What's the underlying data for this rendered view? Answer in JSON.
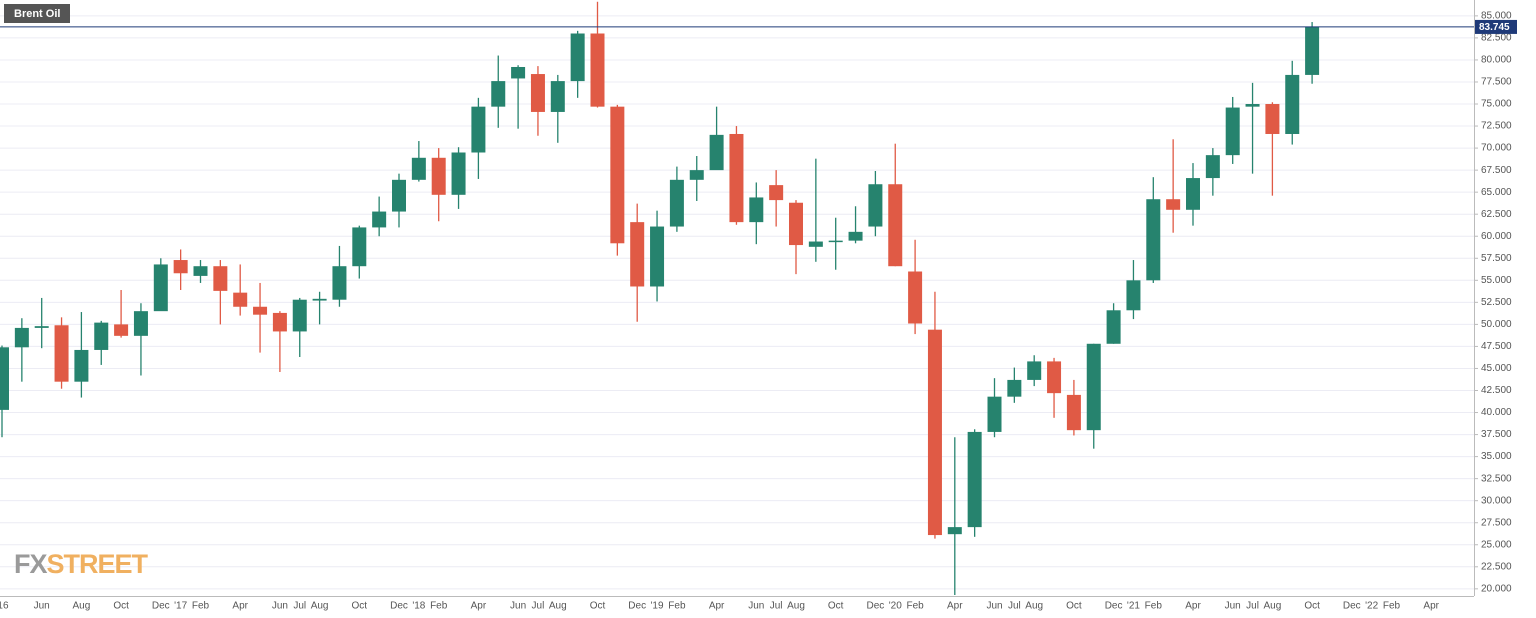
{
  "chart_data": {
    "type": "candlestick",
    "title": "Brent Oil",
    "watermark": {
      "left": "FX",
      "right": "STREET"
    },
    "categories": [
      "'16",
      null,
      "Jun",
      null,
      "Aug",
      null,
      "Oct",
      null,
      "Dec",
      "'17",
      "Feb",
      null,
      "Apr",
      null,
      "Jun",
      "Jul",
      "Aug",
      null,
      "Oct",
      null,
      "Dec",
      "'18",
      "Feb",
      null,
      "Apr",
      null,
      "Jun",
      "Jul",
      "Aug",
      null,
      "Oct",
      null,
      "Dec",
      "'19",
      "Feb",
      null,
      "Apr",
      null,
      "Jun",
      "Jul",
      "Aug",
      null,
      "Oct",
      null,
      "Dec",
      "'20",
      "Feb",
      null,
      "Apr",
      null,
      "Jun",
      "Jul",
      "Aug",
      null,
      "Oct",
      null,
      "Dec",
      "'21",
      "Feb",
      null,
      "Apr",
      null,
      "Jun",
      "Jul",
      "Aug",
      null,
      "Oct",
      null,
      "Dec",
      "'22",
      "Feb",
      null,
      "Apr"
    ],
    "open": [
      40.3,
      47.4,
      49.6,
      49.9,
      43.5,
      47.1,
      50.0,
      48.7,
      51.5,
      57.3,
      55.5,
      56.6,
      53.6,
      52.0,
      51.3,
      49.2,
      52.7,
      52.8,
      56.6,
      61.0,
      62.8,
      66.4,
      68.9,
      64.7,
      69.5,
      74.7,
      77.9,
      78.4,
      74.1,
      77.6,
      83.0,
      74.7,
      61.6,
      54.3,
      61.1,
      66.4,
      67.5,
      71.6,
      61.6,
      65.8,
      63.8,
      58.8,
      59.4,
      59.5,
      61.1,
      65.9,
      56.0,
      49.4,
      26.2,
      27.0,
      37.8,
      41.8,
      43.7,
      45.8,
      42.0,
      38.0,
      47.8,
      51.6,
      55.0,
      64.2,
      63.0,
      66.6,
      69.2,
      74.7,
      75.0,
      71.6,
      78.3,
      null,
      null,
      null,
      null,
      null,
      null
    ],
    "high": [
      47.6,
      50.7,
      53.0,
      50.8,
      51.4,
      50.4,
      53.9,
      52.4,
      57.5,
      58.5,
      57.3,
      57.3,
      56.8,
      54.7,
      51.5,
      53.0,
      53.7,
      58.9,
      61.2,
      64.5,
      67.1,
      70.8,
      70.0,
      70.1,
      75.7,
      80.5,
      79.4,
      79.3,
      78.3,
      83.3,
      86.6,
      74.9,
      63.7,
      62.9,
      67.9,
      69.1,
      74.7,
      72.5,
      66.1,
      67.5,
      64.1,
      68.8,
      62.1,
      63.4,
      67.4,
      70.5,
      59.6,
      53.7,
      37.2,
      38.1,
      43.9,
      45.1,
      46.5,
      46.2,
      43.7,
      47.8,
      52.4,
      57.3,
      66.7,
      71.0,
      68.3,
      70.0,
      75.8,
      77.4,
      75.2,
      79.9,
      84.3,
      null,
      null,
      null,
      null,
      null,
      null
    ],
    "low": [
      37.2,
      43.5,
      47.3,
      42.7,
      41.7,
      45.4,
      48.5,
      44.2,
      51.9,
      53.9,
      54.7,
      50.0,
      51.0,
      46.8,
      44.6,
      46.3,
      50.0,
      52.0,
      55.2,
      60.0,
      61.0,
      66.2,
      61.7,
      63.1,
      66.5,
      72.3,
      72.2,
      71.4,
      70.6,
      75.7,
      74.6,
      57.8,
      50.3,
      52.6,
      60.5,
      64.0,
      67.9,
      61.3,
      59.1,
      61.1,
      55.7,
      57.1,
      56.2,
      59.2,
      60.0,
      56.6,
      48.9,
      25.7,
      19.3,
      25.9,
      37.2,
      41.1,
      43.0,
      39.4,
      37.4,
      35.9,
      47.8,
      50.6,
      54.7,
      60.4,
      61.2,
      64.6,
      68.2,
      67.1,
      64.6,
      70.4,
      77.3,
      null,
      null,
      null,
      null,
      null,
      null
    ],
    "close": [
      47.4,
      49.6,
      49.8,
      43.5,
      47.1,
      50.2,
      48.7,
      51.5,
      56.8,
      55.8,
      56.6,
      53.8,
      52.0,
      51.1,
      49.2,
      52.8,
      52.9,
      56.6,
      61.0,
      62.8,
      66.4,
      68.9,
      64.7,
      69.5,
      74.7,
      77.6,
      79.2,
      74.1,
      77.6,
      83.0,
      74.7,
      59.2,
      54.3,
      61.1,
      66.4,
      67.5,
      71.5,
      61.6,
      64.4,
      64.1,
      59.0,
      59.4,
      59.5,
      60.5,
      65.9,
      56.6,
      50.1,
      26.1,
      27.0,
      37.8,
      41.8,
      43.7,
      45.8,
      42.2,
      38.0,
      47.8,
      51.6,
      55.0,
      64.2,
      63.0,
      66.6,
      69.2,
      74.6,
      75.0,
      71.6,
      78.3,
      83.745,
      null,
      null,
      null,
      null,
      null,
      null
    ],
    "up_color": "#26836e",
    "down_color": "#e05a45",
    "last_line_color": "#1f3a78",
    "ylim": [
      19.3,
      86.8
    ],
    "yticks": [
      {
        "value": 20,
        "label": "20.000"
      },
      {
        "value": 22.5,
        "label": "22.500"
      },
      {
        "value": 25,
        "label": "25.000"
      },
      {
        "value": 27.5,
        "label": "27.500"
      },
      {
        "value": 30,
        "label": "30.000"
      },
      {
        "value": 32.5,
        "label": "32.500"
      },
      {
        "value": 35,
        "label": "35.000"
      },
      {
        "value": 37.5,
        "label": "37.500"
      },
      {
        "value": 40,
        "label": "40.000"
      },
      {
        "value": 42.5,
        "label": "42.500"
      },
      {
        "value": 45,
        "label": "45.000"
      },
      {
        "value": 47.5,
        "label": "47.500"
      },
      {
        "value": 50,
        "label": "50.000"
      },
      {
        "value": 52.5,
        "label": "52.500"
      },
      {
        "value": 55,
        "label": "55.000"
      },
      {
        "value": 57.5,
        "label": "57.500"
      },
      {
        "value": 60,
        "label": "60.000"
      },
      {
        "value": 62.5,
        "label": "62.500"
      },
      {
        "value": 65,
        "label": "65.000"
      },
      {
        "value": 67.5,
        "label": "67.500"
      },
      {
        "value": 70,
        "label": "70.000"
      },
      {
        "value": 72.5,
        "label": "72.500"
      },
      {
        "value": 75,
        "label": "75.000"
      },
      {
        "value": 77.5,
        "label": "77.500"
      },
      {
        "value": 80,
        "label": "80.000"
      },
      {
        "value": 82.5,
        "label": "82.500"
      },
      {
        "value": 85,
        "label": "85.000"
      }
    ],
    "grid": true
  }
}
